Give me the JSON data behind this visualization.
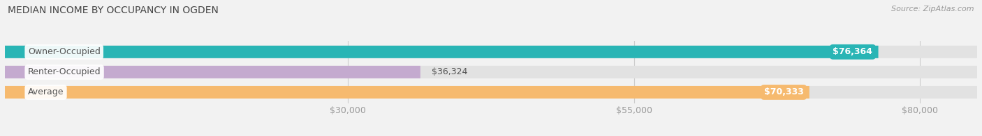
{
  "title": "MEDIAN INCOME BY OCCUPANCY IN OGDEN",
  "source": "Source: ZipAtlas.com",
  "categories": [
    "Owner-Occupied",
    "Renter-Occupied",
    "Average"
  ],
  "values": [
    76364,
    36324,
    70333
  ],
  "bar_colors": [
    "#29b5b5",
    "#c4aacf",
    "#f6ba6f"
  ],
  "value_labels": [
    "$76,364",
    "$36,324",
    "$70,333"
  ],
  "x_ticks": [
    30000,
    55000,
    80000
  ],
  "x_tick_labels": [
    "$30,000",
    "$55,000",
    "$80,000"
  ],
  "xmin": 0,
  "xmax": 85000,
  "background_color": "#f2f2f2",
  "bar_bg_color": "#e2e2e2",
  "title_fontsize": 10,
  "source_fontsize": 8,
  "label_fontsize": 9,
  "value_fontsize": 9,
  "tick_fontsize": 9,
  "bar_height": 0.62,
  "label_pill_color": "#ffffff",
  "label_text_color": "#555555"
}
